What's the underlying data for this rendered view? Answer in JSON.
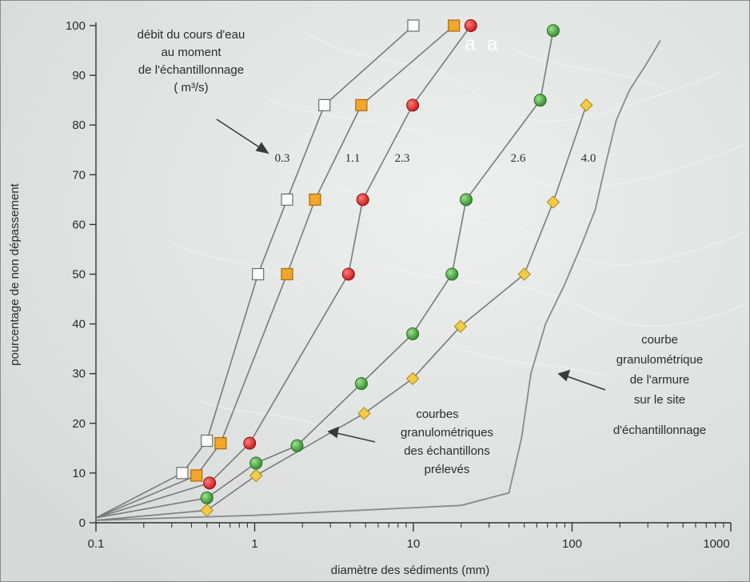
{
  "chart_data": {
    "type": "scatter",
    "x_scale": "log",
    "xlim": [
      0.1,
      1000
    ],
    "ylim": [
      0,
      100
    ],
    "xlabel": "diamètre des sédiments  (mm)",
    "ylabel": "pourcentage de non dépassement",
    "x_ticks": [
      0.1,
      1,
      10,
      100,
      1000
    ],
    "x_tick_labels": [
      "0.1",
      "1",
      "10",
      "100",
      "1000"
    ],
    "y_ticks": [
      0,
      10,
      20,
      30,
      40,
      50,
      60,
      70,
      80,
      90,
      100
    ],
    "y_tick_labels": [
      "0",
      "10",
      "20",
      "30",
      "40",
      "50",
      "60",
      "70",
      "80",
      "90",
      "100"
    ],
    "grid": false,
    "series": [
      {
        "name": "0.3",
        "marker": "square",
        "color": "#ffffff",
        "x": [
          0.1,
          0.35,
          0.5,
          1.05,
          1.6,
          2.75,
          10
        ],
        "y": [
          1,
          10,
          16.5,
          50,
          65,
          84,
          100
        ]
      },
      {
        "name": "1.1",
        "marker": "square",
        "color": "#f2a62a",
        "x": [
          0.1,
          0.43,
          0.61,
          1.6,
          2.4,
          4.7,
          18
        ],
        "y": [
          1,
          9.5,
          16,
          50,
          65,
          84,
          100
        ]
      },
      {
        "name": "2.3",
        "marker": "circle",
        "color": "#e02c2c",
        "x": [
          0.1,
          0.52,
          0.93,
          3.9,
          4.8,
          9.9,
          23
        ],
        "y": [
          1,
          8,
          16,
          50,
          65,
          84,
          100
        ]
      },
      {
        "name": "2.6",
        "marker": "circle",
        "color": "#4caa3c",
        "x": [
          0.1,
          0.5,
          1.02,
          1.85,
          4.7,
          9.9,
          17.5,
          21.5,
          63,
          76
        ],
        "y": [
          1,
          5,
          12,
          15.5,
          28,
          38,
          50,
          65,
          85,
          99
        ]
      },
      {
        "name": "4.0",
        "marker": "diamond",
        "color": "#f2cc45",
        "x": [
          0.1,
          0.5,
          1.02,
          4.9,
          9.9,
          19.8,
          50,
          76,
          123
        ],
        "y": [
          0.5,
          2.5,
          9.5,
          22,
          29,
          39.5,
          50,
          64.5,
          84
        ]
      }
    ],
    "armour_curve": {
      "x": [
        0.1,
        1,
        20,
        40,
        48,
        55,
        68,
        90,
        115,
        140,
        165,
        190,
        230,
        290,
        360
      ],
      "y": [
        0.5,
        1.5,
        3.5,
        6,
        17,
        30,
        40,
        48,
        56,
        63,
        73,
        81,
        87,
        92,
        97
      ]
    },
    "annotations": {
      "flow_title": [
        "débit du cours d'eau",
        "au moment",
        "de l'échantillonnage",
        "( m³/s)"
      ],
      "curve_labels": [
        "0.3",
        "1.1",
        "2.3",
        "2.6",
        "4.0"
      ],
      "samples_label": [
        "courbes",
        "granulométriques",
        "des échantillons",
        "prélevés"
      ],
      "armour_label": [
        "courbe",
        "granulométrique",
        "de l'armure",
        "sur le site",
        "d'échantillonnage"
      ],
      "overlay_text": "a  a"
    }
  },
  "colors": {
    "line": "#7a7a7a",
    "armour_line": "#8a8a8a",
    "text": "#2b2b2b",
    "background": "#dfe2e1"
  }
}
